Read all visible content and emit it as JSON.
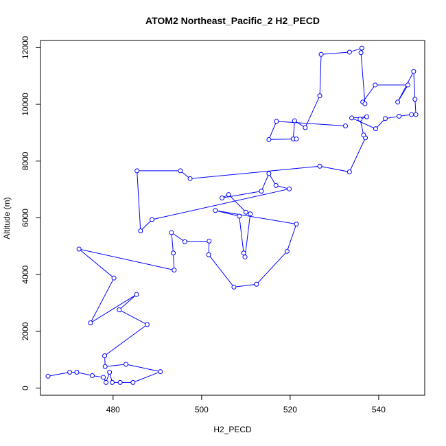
{
  "chart_data": {
    "type": "scatter",
    "title": "ATOM2 Northeast_Pacific_2 H2_PECD",
    "xlabel": "H2_PECD",
    "ylabel": "Altitude (m)",
    "xlim": [
      463.6,
      550.4
    ],
    "ylim": [
      -250,
      12250
    ],
    "xticks": [
      480,
      500,
      520,
      540
    ],
    "yticks": [
      0,
      2000,
      4000,
      6000,
      8000,
      10000,
      12000
    ],
    "grid": false,
    "legend": "none",
    "style": "line-with-points",
    "color": "#0000ff",
    "points": [
      [
        465.3,
        420
      ],
      [
        470.2,
        560
      ],
      [
        471.8,
        560
      ],
      [
        475.3,
        440
      ],
      [
        477.8,
        380
      ],
      [
        478.4,
        200
      ],
      [
        479.2,
        560
      ],
      [
        479.8,
        200
      ],
      [
        481.6,
        200
      ],
      [
        484.5,
        200
      ],
      [
        490.7,
        580
      ],
      [
        482.9,
        840
      ],
      [
        478.2,
        760
      ],
      [
        478.1,
        1140
      ],
      [
        487.7,
        2240
      ],
      [
        481.4,
        2760
      ],
      [
        485.3,
        3300
      ],
      [
        474.9,
        2300
      ],
      [
        480.2,
        3880
      ],
      [
        472.3,
        4900
      ],
      [
        493.8,
        4160
      ],
      [
        493.6,
        4760
      ],
      [
        493.2,
        5480
      ],
      [
        496.2,
        5160
      ],
      [
        501.7,
        5180
      ],
      [
        501.6,
        4700
      ],
      [
        507.3,
        3560
      ],
      [
        512.4,
        3660
      ],
      [
        519.3,
        4820
      ],
      [
        521.4,
        5780
      ],
      [
        503.1,
        6260
      ],
      [
        508.5,
        6060
      ],
      [
        509.5,
        4760
      ],
      [
        509.8,
        4620
      ],
      [
        511.0,
        6140
      ],
      [
        510.0,
        6200
      ],
      [
        506.1,
        6820
      ],
      [
        504.6,
        6700
      ],
      [
        513.5,
        6940
      ],
      [
        515.2,
        7560
      ],
      [
        516.8,
        7140
      ],
      [
        519.8,
        7020
      ],
      [
        488.8,
        5940
      ],
      [
        486.2,
        5540
      ],
      [
        485.4,
        7660
      ],
      [
        495.2,
        7660
      ],
      [
        497.4,
        7380
      ],
      [
        526.7,
        7820
      ],
      [
        533.4,
        7620
      ],
      [
        537.0,
        8820
      ],
      [
        536.6,
        8920
      ],
      [
        535.8,
        9480
      ],
      [
        537.3,
        9560
      ],
      [
        533.9,
        9520
      ],
      [
        539.3,
        9140
      ],
      [
        541.5,
        9500
      ],
      [
        544.6,
        9580
      ],
      [
        547.4,
        9640
      ],
      [
        548.4,
        9640
      ],
      [
        548.2,
        10180
      ],
      [
        547.9,
        11160
      ],
      [
        544.3,
        10080
      ],
      [
        546.6,
        10680
      ],
      [
        539.2,
        10680
      ],
      [
        536.4,
        10080
      ],
      [
        536.9,
        10020
      ],
      [
        536.0,
        11820
      ],
      [
        536.2,
        11980
      ],
      [
        533.4,
        11840
      ],
      [
        527.0,
        11760
      ],
      [
        526.7,
        10300
      ],
      [
        523.4,
        9180
      ],
      [
        521.0,
        9420
      ],
      [
        520.7,
        8780
      ],
      [
        521.4,
        8780
      ],
      [
        515.2,
        8760
      ],
      [
        516.9,
        9400
      ],
      [
        532.5,
        9240
      ]
    ]
  }
}
